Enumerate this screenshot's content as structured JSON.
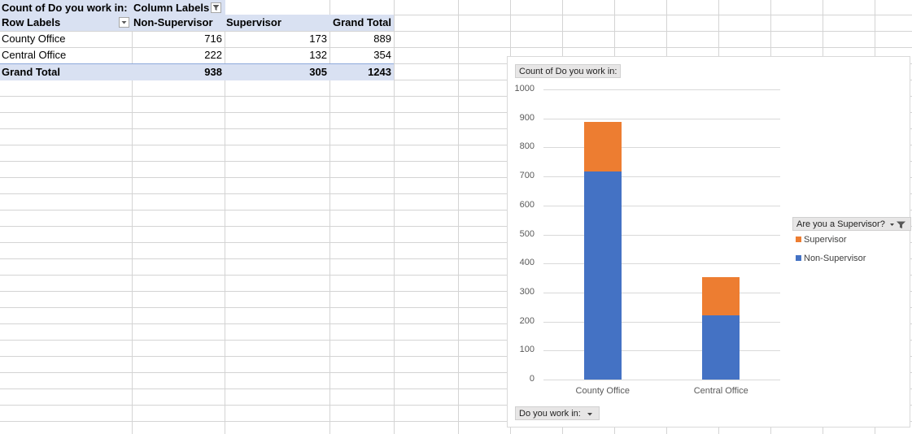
{
  "pivot": {
    "title_label": "Count of Do you work in:",
    "column_labels": "Column Labels",
    "headers": [
      "Row Labels",
      "Non-Supervisor",
      "Supervisor",
      "Grand Total"
    ],
    "rows": [
      {
        "label": "County Office",
        "values": [
          "716",
          "173",
          "889"
        ]
      },
      {
        "label": "Central Office",
        "values": [
          "222",
          "132",
          "354"
        ]
      }
    ],
    "total": {
      "label": "Grand Total",
      "values": [
        "938",
        "305",
        "1243"
      ]
    }
  },
  "chart": {
    "value_field_button": "Count of Do you work in:",
    "axis_field_button": "Do you work in:",
    "legend_field_button": "Are you a Supervisor?",
    "colors": {
      "Non-Supervisor": "#4472c4",
      "Supervisor": "#ed7d31"
    },
    "legend_entries": [
      "Supervisor",
      "Non-Supervisor"
    ]
  },
  "chart_data": {
    "type": "bar",
    "stacked": true,
    "categories": [
      "County Office",
      "Central Office"
    ],
    "series": [
      {
        "name": "Non-Supervisor",
        "values": [
          716,
          222
        ]
      },
      {
        "name": "Supervisor",
        "values": [
          173,
          132
        ]
      }
    ],
    "ylim": [
      0,
      1000
    ],
    "yticks": [
      "0",
      "100",
      "200",
      "300",
      "400",
      "500",
      "600",
      "700",
      "800",
      "900",
      "1000"
    ],
    "grid": true,
    "legend": "right"
  }
}
